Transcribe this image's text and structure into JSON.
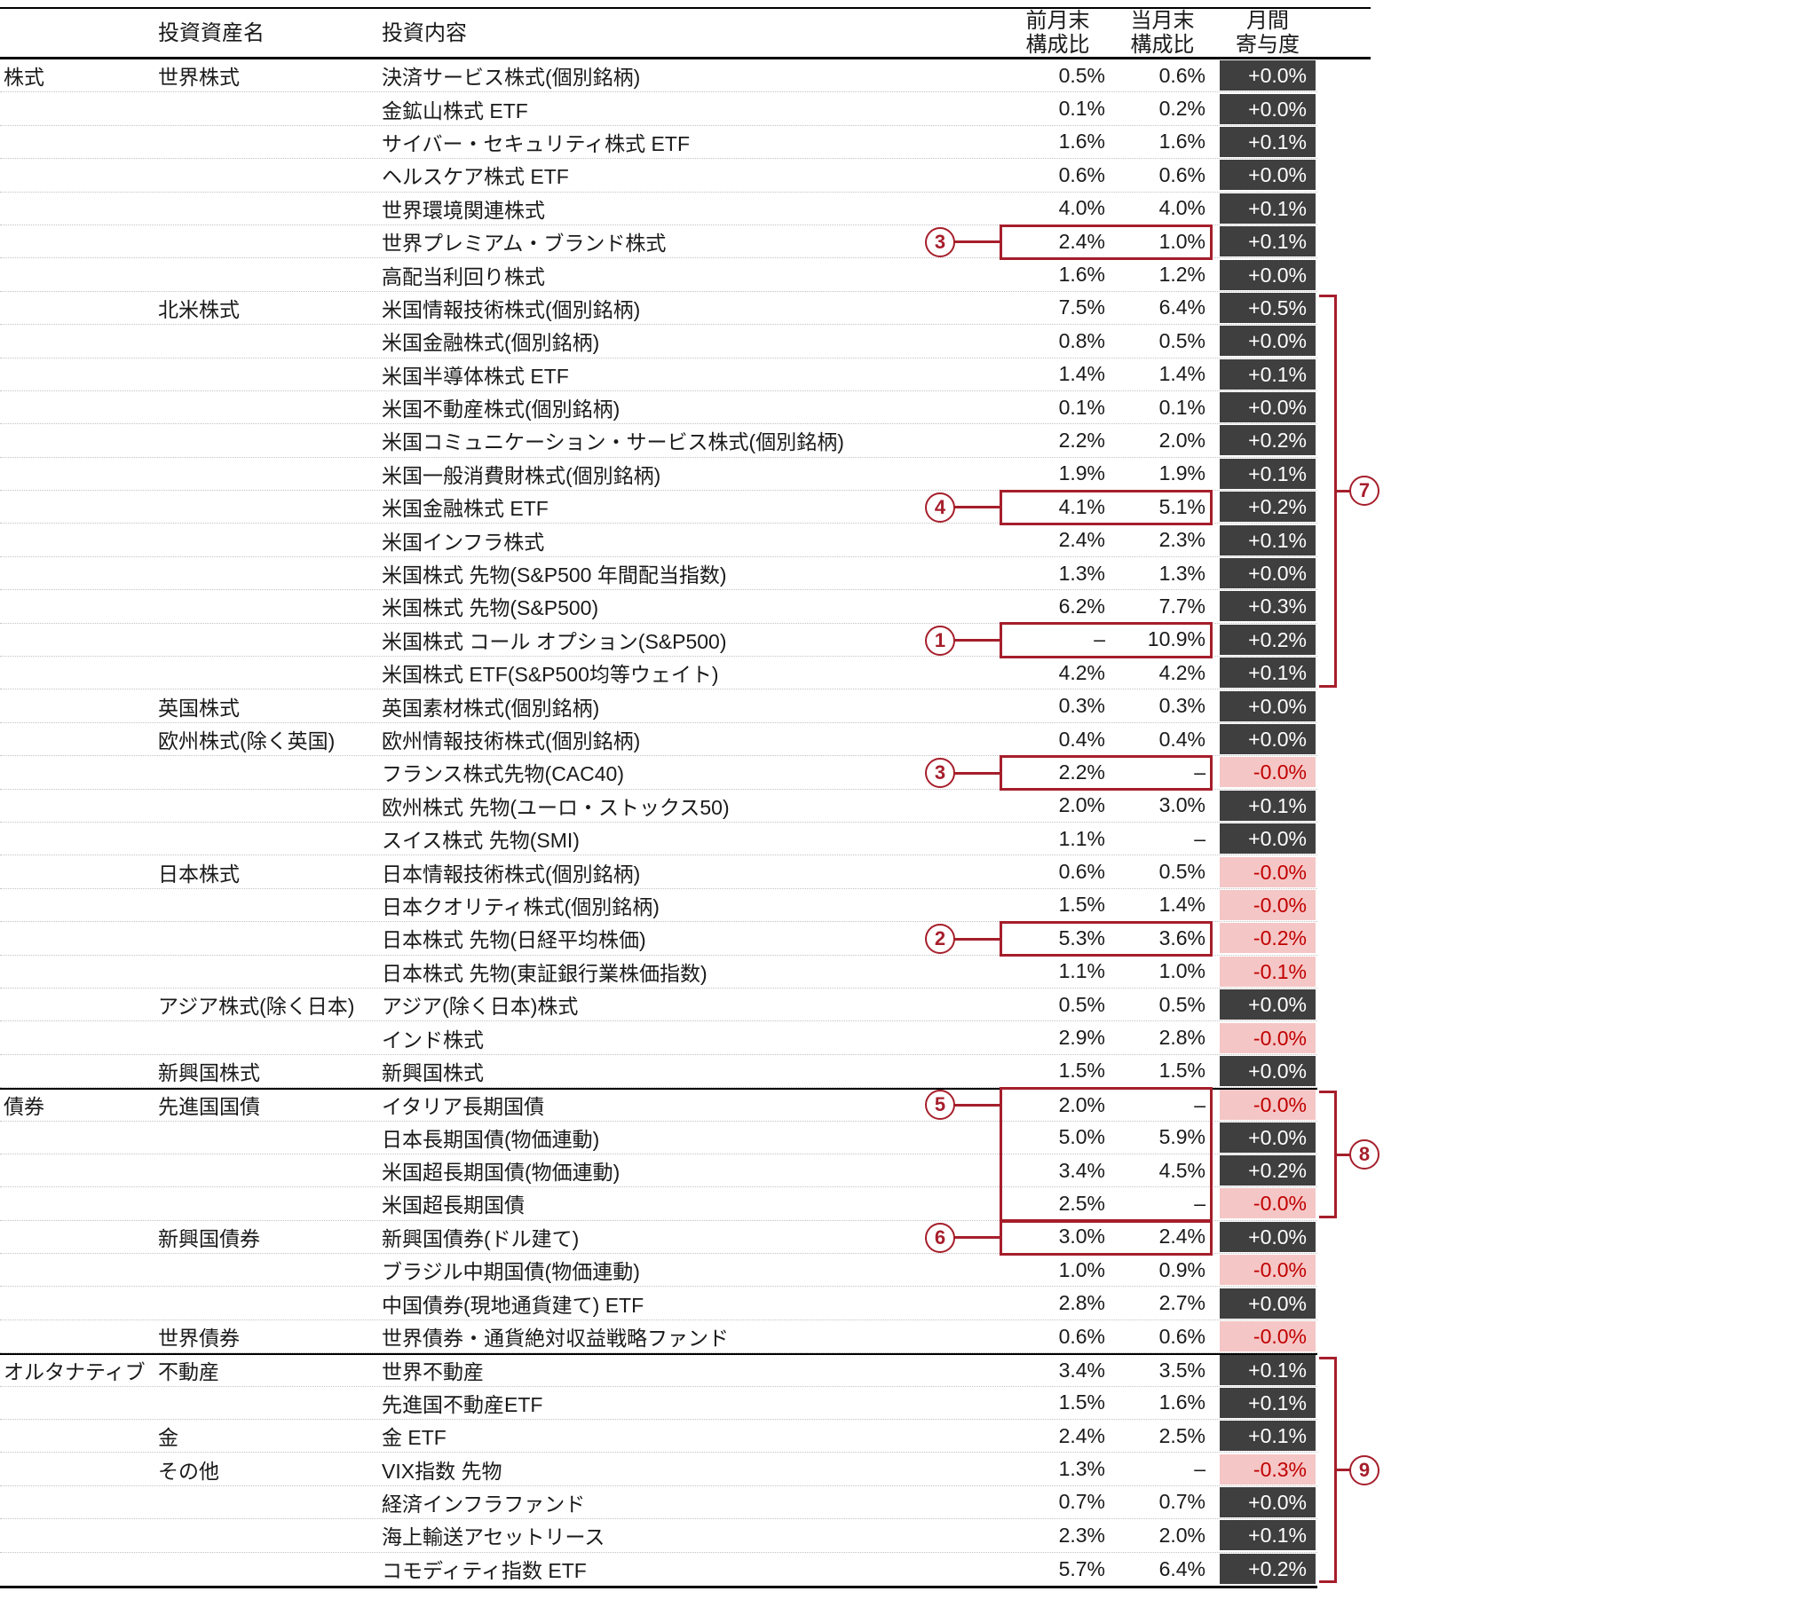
{
  "header": {
    "asset_name": "投資資産名",
    "content": "投資内容",
    "prev_month": "前月末\n構成比",
    "curr_month": "当月末\n構成比",
    "contribution": "月間\n寄与度"
  },
  "colors": {
    "accent_red": "#A61E2B",
    "contribution_positive_bg": "#3F3F3F",
    "contribution_positive_text": "#FFFFFF",
    "contribution_negative_bg": "#F5C6C6",
    "contribution_negative_text": "#C00000"
  },
  "rows": [
    {
      "category": "株式",
      "asset": "世界株式",
      "content": "決済サービス株式(個別銘柄)",
      "prev": "0.5%",
      "curr": "0.6%",
      "contrib": "+0.0%",
      "negative": false
    },
    {
      "content": "金鉱山株式 ETF",
      "prev": "0.1%",
      "curr": "0.2%",
      "contrib": "+0.0%",
      "negative": false
    },
    {
      "content": "サイバー・セキュリティ株式 ETF",
      "prev": "1.6%",
      "curr": "1.6%",
      "contrib": "+0.1%",
      "negative": false
    },
    {
      "content": "ヘルスケア株式 ETF",
      "prev": "0.6%",
      "curr": "0.6%",
      "contrib": "+0.0%",
      "negative": false
    },
    {
      "content": "世界環境関連株式",
      "prev": "4.0%",
      "curr": "4.0%",
      "contrib": "+0.1%",
      "negative": false
    },
    {
      "content": "世界プレミアム・ブランド株式",
      "prev": "2.4%",
      "curr": "1.0%",
      "contrib": "+0.1%",
      "negative": false
    },
    {
      "content": "高配当利回り株式",
      "prev": "1.6%",
      "curr": "1.2%",
      "contrib": "+0.0%",
      "negative": false
    },
    {
      "asset": "北米株式",
      "content": "米国情報技術株式(個別銘柄)",
      "prev": "7.5%",
      "curr": "6.4%",
      "contrib": "+0.5%",
      "negative": false
    },
    {
      "content": "米国金融株式(個別銘柄)",
      "prev": "0.8%",
      "curr": "0.5%",
      "contrib": "+0.0%",
      "negative": false
    },
    {
      "content": "米国半導体株式 ETF",
      "prev": "1.4%",
      "curr": "1.4%",
      "contrib": "+0.1%",
      "negative": false
    },
    {
      "content": "米国不動産株式(個別銘柄)",
      "prev": "0.1%",
      "curr": "0.1%",
      "contrib": "+0.0%",
      "negative": false
    },
    {
      "content": "米国コミュニケーション・サービス株式(個別銘柄)",
      "prev": "2.2%",
      "curr": "2.0%",
      "contrib": "+0.2%",
      "negative": false
    },
    {
      "content": "米国一般消費財株式(個別銘柄)",
      "prev": "1.9%",
      "curr": "1.9%",
      "contrib": "+0.1%",
      "negative": false
    },
    {
      "content": "米国金融株式 ETF",
      "prev": "4.1%",
      "curr": "5.1%",
      "contrib": "+0.2%",
      "negative": false
    },
    {
      "content": "米国インフラ株式",
      "prev": "2.4%",
      "curr": "2.3%",
      "contrib": "+0.1%",
      "negative": false
    },
    {
      "content": "米国株式 先物(S&P500 年間配当指数)",
      "prev": "1.3%",
      "curr": "1.3%",
      "contrib": "+0.0%",
      "negative": false
    },
    {
      "content": "米国株式 先物(S&P500)",
      "prev": "6.2%",
      "curr": "7.7%",
      "contrib": "+0.3%",
      "negative": false
    },
    {
      "content": "米国株式 コール オプション(S&P500)",
      "prev": "–",
      "curr": "10.9%",
      "contrib": "+0.2%",
      "negative": false
    },
    {
      "content": "米国株式 ETF(S&P500均等ウェイト)",
      "prev": "4.2%",
      "curr": "4.2%",
      "contrib": "+0.1%",
      "negative": false
    },
    {
      "asset": "英国株式",
      "content": "英国素材株式(個別銘柄)",
      "prev": "0.3%",
      "curr": "0.3%",
      "contrib": "+0.0%",
      "negative": false
    },
    {
      "asset": "欧州株式(除く英国)",
      "content": "欧州情報技術株式(個別銘柄)",
      "prev": "0.4%",
      "curr": "0.4%",
      "contrib": "+0.0%",
      "negative": false
    },
    {
      "content": "フランス株式先物(CAC40)",
      "prev": "2.2%",
      "curr": "–",
      "contrib": "-0.0%",
      "negative": true
    },
    {
      "content": "欧州株式 先物(ユーロ・ストックス50)",
      "prev": "2.0%",
      "curr": "3.0%",
      "contrib": "+0.1%",
      "negative": false
    },
    {
      "content": "スイス株式 先物(SMI)",
      "prev": "1.1%",
      "curr": "–",
      "contrib": "+0.0%",
      "negative": false
    },
    {
      "asset": "日本株式",
      "content": "日本情報技術株式(個別銘柄)",
      "prev": "0.6%",
      "curr": "0.5%",
      "contrib": "-0.0%",
      "negative": true
    },
    {
      "content": "日本クオリティ株式(個別銘柄)",
      "prev": "1.5%",
      "curr": "1.4%",
      "contrib": "-0.0%",
      "negative": true
    },
    {
      "content": "日本株式 先物(日経平均株価)",
      "prev": "5.3%",
      "curr": "3.6%",
      "contrib": "-0.2%",
      "negative": true
    },
    {
      "content": "日本株式 先物(東証銀行業株価指数)",
      "prev": "1.1%",
      "curr": "1.0%",
      "contrib": "-0.1%",
      "negative": true
    },
    {
      "asset": "アジア株式(除く日本)",
      "content": "アジア(除く日本)株式",
      "prev": "0.5%",
      "curr": "0.5%",
      "contrib": "+0.0%",
      "negative": false
    },
    {
      "content": "インド株式",
      "prev": "2.9%",
      "curr": "2.8%",
      "contrib": "-0.0%",
      "negative": true
    },
    {
      "asset": "新興国株式",
      "content": "新興国株式",
      "prev": "1.5%",
      "curr": "1.5%",
      "contrib": "+0.0%",
      "negative": false
    },
    {
      "category": "債券",
      "asset": "先進国国債",
      "content": "イタリア長期国債",
      "prev": "2.0%",
      "curr": "–",
      "contrib": "-0.0%",
      "negative": true
    },
    {
      "content": "日本長期国債(物価連動)",
      "prev": "5.0%",
      "curr": "5.9%",
      "contrib": "+0.0%",
      "negative": false
    },
    {
      "content": "米国超長期国債(物価連動)",
      "prev": "3.4%",
      "curr": "4.5%",
      "contrib": "+0.2%",
      "negative": false
    },
    {
      "content": "米国超長期国債",
      "prev": "2.5%",
      "curr": "–",
      "contrib": "-0.0%",
      "negative": true
    },
    {
      "asset": "新興国債券",
      "content": "新興国債券(ドル建て)",
      "prev": "3.0%",
      "curr": "2.4%",
      "contrib": "+0.0%",
      "negative": false
    },
    {
      "content": "ブラジル中期国債(物価連動)",
      "prev": "1.0%",
      "curr": "0.9%",
      "contrib": "-0.0%",
      "negative": true
    },
    {
      "content": "中国債券(現地通貨建て) ETF",
      "prev": "2.8%",
      "curr": "2.7%",
      "contrib": "+0.0%",
      "negative": false
    },
    {
      "asset": "世界債券",
      "content": "世界債券・通貨絶対収益戦略ファンド",
      "prev": "0.6%",
      "curr": "0.6%",
      "contrib": "-0.0%",
      "negative": true
    },
    {
      "category": "オルタナティブ",
      "asset": "不動産",
      "content": "世界不動産",
      "prev": "3.4%",
      "curr": "3.5%",
      "contrib": "+0.1%",
      "negative": false
    },
    {
      "content": "先進国不動産ETF",
      "prev": "1.5%",
      "curr": "1.6%",
      "contrib": "+0.1%",
      "negative": false
    },
    {
      "asset": "金",
      "content": "金 ETF",
      "prev": "2.4%",
      "curr": "2.5%",
      "contrib": "+0.1%",
      "negative": false
    },
    {
      "asset": "その他",
      "content": "VIX指数 先物",
      "prev": "1.3%",
      "curr": "–",
      "contrib": "-0.3%",
      "negative": true
    },
    {
      "content": "経済インフラファンド",
      "prev": "0.7%",
      "curr": "0.7%",
      "contrib": "+0.0%",
      "negative": false
    },
    {
      "content": "海上輸送アセットリース",
      "prev": "2.3%",
      "curr": "2.0%",
      "contrib": "+0.1%",
      "negative": false
    },
    {
      "content": "コモディティ指数 ETF",
      "prev": "5.7%",
      "curr": "6.4%",
      "contrib": "+0.2%",
      "negative": false
    }
  ],
  "markers": [
    {
      "row": 5,
      "label": "3"
    },
    {
      "row": 13,
      "label": "4"
    },
    {
      "row": 17,
      "label": "1"
    },
    {
      "row": 21,
      "label": "3"
    },
    {
      "row": 26,
      "label": "2"
    },
    {
      "row": 31,
      "label": "5",
      "span": 4
    },
    {
      "row": 35,
      "label": "6"
    }
  ],
  "brackets": [
    {
      "label": "7",
      "start": 7,
      "count": 12
    },
    {
      "label": "8",
      "start": 31,
      "count": 4
    },
    {
      "label": "9",
      "start": 39,
      "count": 7
    }
  ],
  "section_start_rows": [
    31,
    39
  ]
}
